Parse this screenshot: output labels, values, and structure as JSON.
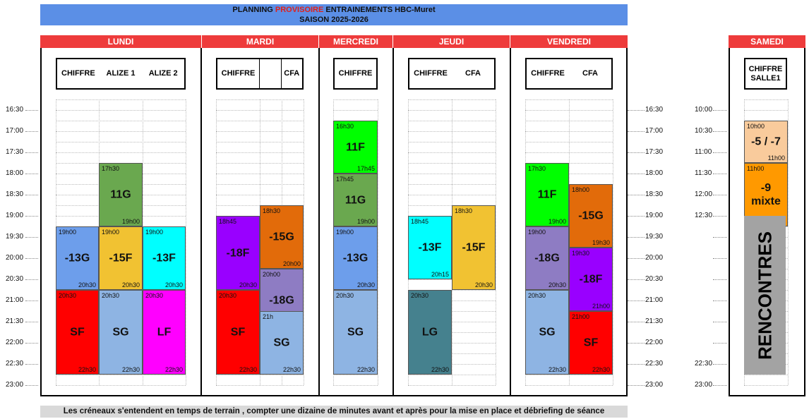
{
  "title": {
    "line1_before": "PLANNING ",
    "line1_highlight": "PROVISOIRE",
    "line1_after": " ENTRAINEMENTS HBC-Muret",
    "line2": "SAISON 2025-2026"
  },
  "days": [
    {
      "name": "LUNDI",
      "columns": [
        "CHIFFRE",
        "ALIZE 1",
        "ALIZE 2"
      ]
    },
    {
      "name": "MARDI",
      "columns": [
        "CHIFFRE",
        "",
        "CFA"
      ]
    },
    {
      "name": "MERCREDI",
      "columns": [
        "CHIFFRE"
      ]
    },
    {
      "name": "JEUDI",
      "columns": [
        "CHIFFRE",
        "CFA"
      ]
    },
    {
      "name": "VENDREDI",
      "columns": [
        "CHIFFRE",
        "CFA"
      ]
    },
    {
      "name": "SAMEDI",
      "columns": [
        "CHIFFRE SALLE1"
      ]
    }
  ],
  "weekday_times": [
    "16:30",
    "17:00",
    "17:30",
    "18:00",
    "18:30",
    "19:00",
    "19:30",
    "20:00",
    "20:30",
    "21:00",
    "21:30",
    "22:00",
    "22:30",
    "23:00"
  ],
  "saturday_times": [
    "10:00",
    "10:30",
    "11:00",
    "11:30",
    "12:00",
    "12:30",
    "",
    "",
    "",
    "",
    "",
    "",
    "22:30",
    "23:00"
  ],
  "sessions": [
    {
      "day": "LUNDI",
      "column": "ALIZE 1",
      "team": "11G",
      "start": "17h30",
      "end": "19h00",
      "color": "#6aa84f"
    },
    {
      "day": "LUNDI",
      "column": "CHIFFRE",
      "team": "-13G",
      "start": "19h00",
      "end": "20h30",
      "color": "#6d9eeb"
    },
    {
      "day": "LUNDI",
      "column": "ALIZE 1",
      "team": "-15F",
      "start": "19h00",
      "end": "20h30",
      "color": "#f1c232"
    },
    {
      "day": "LUNDI",
      "column": "ALIZE 2",
      "team": "-13F",
      "start": "19h00",
      "end": "20h30",
      "color": "#00ffff"
    },
    {
      "day": "LUNDI",
      "column": "CHIFFRE",
      "team": "SF",
      "start": "20h30",
      "end": "22h30",
      "color": "#ff0000"
    },
    {
      "day": "LUNDI",
      "column": "ALIZE 1",
      "team": "SG",
      "start": "20h30",
      "end": "22h30",
      "color": "#8eb4e3"
    },
    {
      "day": "LUNDI",
      "column": "ALIZE 2",
      "team": "LF",
      "start": "20h30",
      "end": "22h30",
      "color": "#ff00ff"
    },
    {
      "day": "MARDI",
      "column": "CHIFFRE",
      "team": "-18F",
      "start": "18h45",
      "end": "20h30",
      "color": "#9900ff"
    },
    {
      "day": "MARDI",
      "column": "CFA",
      "team": "-15G",
      "start": "18h30",
      "end": "20h00",
      "color": "#e26b0a"
    },
    {
      "day": "MARDI",
      "column": "CFA",
      "team": "-18G",
      "start": "20h00",
      "end": "21h30",
      "color": "#8e7cc3"
    },
    {
      "day": "MARDI",
      "column": "CHIFFRE",
      "team": "SF",
      "start": "20h30",
      "end": "22h30",
      "color": "#ff0000"
    },
    {
      "day": "MARDI",
      "column": "CFA",
      "team": "SG",
      "start": "21h",
      "end": "22h30",
      "color": "#8eb4e3"
    },
    {
      "day": "MERCREDI",
      "column": "CHIFFRE",
      "team": "11F",
      "start": "16h30",
      "end": "17h45",
      "color": "#00ff00"
    },
    {
      "day": "MERCREDI",
      "column": "CHIFFRE",
      "team": "11G",
      "start": "17h45",
      "end": "19h00",
      "color": "#6aa84f"
    },
    {
      "day": "MERCREDI",
      "column": "CHIFFRE",
      "team": "-13G",
      "start": "19h00",
      "end": "20h30",
      "color": "#6d9eeb"
    },
    {
      "day": "MERCREDI",
      "column": "CHIFFRE",
      "team": "SG",
      "start": "20h30",
      "end": "22h30",
      "color": "#8eb4e3"
    },
    {
      "day": "JEUDI",
      "column": "CHIFFRE",
      "team": "-13F",
      "start": "18h45",
      "end": "20h15",
      "color": "#00ffff"
    },
    {
      "day": "JEUDI",
      "column": "CFA",
      "team": "-15F",
      "start": "18h30",
      "end": "20h30",
      "color": "#f1c232"
    },
    {
      "day": "JEUDI",
      "column": "CHIFFRE",
      "team": "LG",
      "start": "20h30",
      "end": "22h30",
      "color": "#45818e"
    },
    {
      "day": "VENDREDI",
      "column": "CHIFFRE",
      "team": "11F",
      "start": "17h30",
      "end": "19h00",
      "color": "#00ff00"
    },
    {
      "day": "VENDREDI",
      "column": "CFA",
      "team": "-15G",
      "start": "18h00",
      "end": "19h30",
      "color": "#e26b0a"
    },
    {
      "day": "VENDREDI",
      "column": "CHIFFRE",
      "team": "-18G",
      "start": "19h00",
      "end": "20h30",
      "color": "#8e7cc3"
    },
    {
      "day": "VENDREDI",
      "column": "CFA",
      "team": "-18F",
      "start": "19h30",
      "end": "21h00",
      "color": "#9900ff"
    },
    {
      "day": "VENDREDI",
      "column": "CHIFFRE",
      "team": "SG",
      "start": "20h30",
      "end": "22h30",
      "color": "#8eb4e3"
    },
    {
      "day": "VENDREDI",
      "column": "CFA",
      "team": "SF",
      "start": "21h00",
      "end": "22h30",
      "color": "#ff0000"
    },
    {
      "day": "SAMEDI",
      "column": "CHIFFRE SALLE1",
      "team": "-5 / -7",
      "start": "10h00",
      "end": "11h00",
      "color": "#f9cb9c"
    },
    {
      "day": "SAMEDI",
      "column": "CHIFFRE SALLE1",
      "team": "-9 mixte",
      "start": "11h00",
      "end": "12h30",
      "color": "#ff9900"
    }
  ],
  "saturday_event": {
    "label": "RENCONTRES",
    "color": "#a3a3a3"
  },
  "footer": "Les créneaux s'entendent en temps de terrain , compter une dizaine de minutes avant et après pour la mise en place et débriefing de séance"
}
